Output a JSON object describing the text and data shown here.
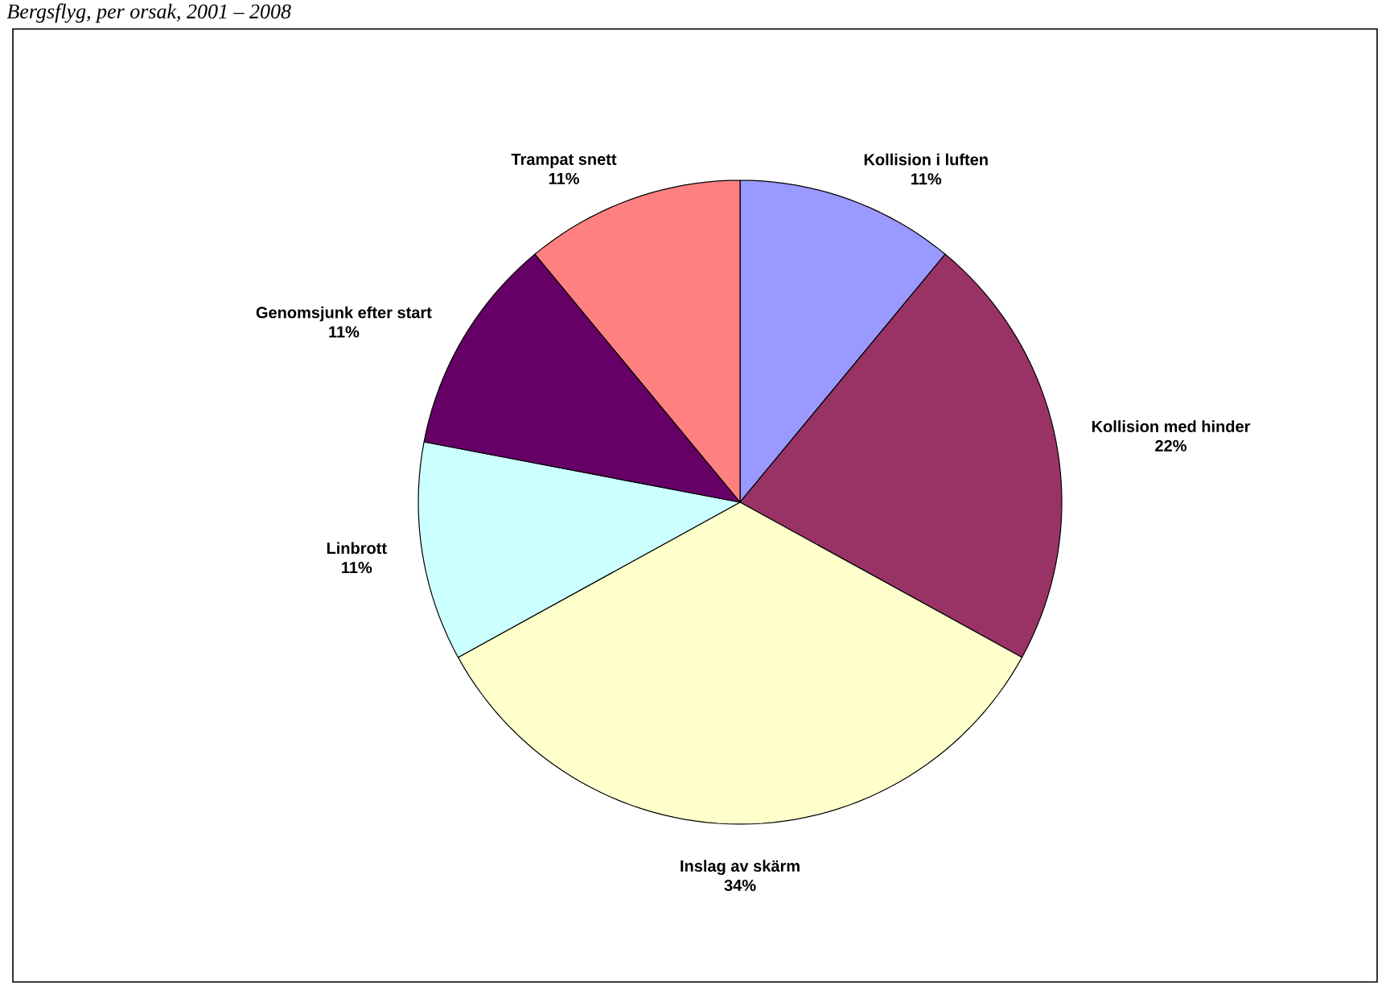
{
  "chart_data": {
    "type": "pie",
    "title": "Bergsflyg, per orsak, 2001 – 2008",
    "categories": [
      "Kollision i luften",
      "Kollision med hinder",
      "Inslag av skärm",
      "Linbrott",
      "Genomsjunk efter start",
      "Trampat snett"
    ],
    "values": [
      11,
      22,
      34,
      11,
      11,
      11
    ],
    "value_labels": [
      "11%",
      "22%",
      "34%",
      "11%",
      "11%",
      "11%"
    ],
    "colors": [
      "#9999ff",
      "#993366",
      "#ffffcc",
      "#ccffff",
      "#660066",
      "#ff8080"
    ],
    "legend": false
  }
}
